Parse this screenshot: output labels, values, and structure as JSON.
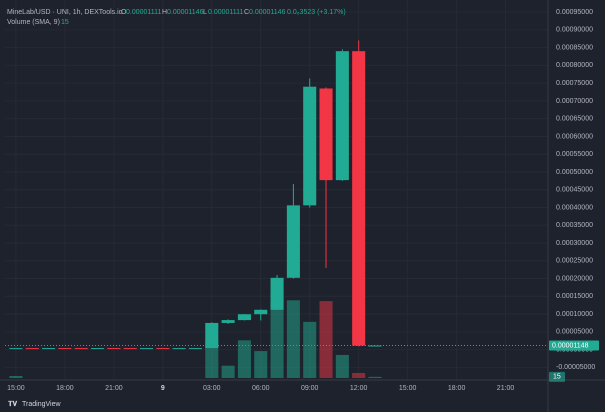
{
  "chart_data": {
    "type": "candlestick",
    "legend": {
      "symbol": "MineLab/USD · UNI, 1h, DEXTools.io",
      "ohlc": [
        [
          "O",
          "0.00001111"
        ],
        [
          "H",
          "0.00001146"
        ],
        [
          "L",
          "0.00001111"
        ],
        [
          "C",
          "0.00001146"
        ]
      ],
      "change": "0.0₆3523 (+3.17%)",
      "volume": "Volume (SMA, 9)"
    },
    "brand": "TradingView",
    "x": [
      0,
      1,
      2,
      3,
      4,
      5,
      6,
      7,
      8,
      9,
      10,
      11,
      12,
      13,
      14,
      15,
      16,
      17,
      18,
      19,
      20,
      21,
      22
    ],
    "open": [
      4e-06,
      4.2e-06,
      4.1e-06,
      4.3e-06,
      4.2e-06,
      4.1e-06,
      4.3e-06,
      4.2e-06,
      4.1e-06,
      4.2e-06,
      4.1e-06,
      4.2e-06,
      4.2e-06,
      7.5e-05,
      8.3e-05,
      9.95e-05,
      0.000112,
      0.000202,
      0.000406,
      0.000735,
      0.000477,
      0.00084,
      1.111e-05
    ],
    "high": [
      4.3e-06,
      4.3e-06,
      4.4e-06,
      4.4e-06,
      4.3e-06,
      4.4e-06,
      4.4e-06,
      4.3e-06,
      4.3e-06,
      4.3e-06,
      4.3e-06,
      4.3e-06,
      7.7e-05,
      8.5e-05,
      0.0001,
      0.000113,
      0.00021,
      0.000466,
      0.000763,
      0.000738,
      0.000845,
      0.00087,
      1.146e-05
    ],
    "low": [
      3.9e-06,
      4e-06,
      4e-06,
      4.1e-06,
      4e-06,
      4e-06,
      4.1e-06,
      4e-06,
      4e-06,
      4e-06,
      4e-06,
      4.1e-06,
      4e-06,
      7.2e-05,
      8.2e-05,
      8.2e-05,
      0.000111,
      0.0002,
      0.0004,
      0.00023,
      0.000475,
      9e-06,
      1.111e-05
    ],
    "close": [
      4.2e-06,
      4.1e-06,
      4.3e-06,
      4.2e-06,
      4.1e-06,
      4.3e-06,
      4.2e-06,
      4.1e-06,
      4.2e-06,
      4.1e-06,
      4.2e-06,
      4.2e-06,
      7.5e-05,
      8.3e-05,
      9.95e-05,
      0.000112,
      0.000202,
      0.000406,
      0.00074,
      0.000477,
      0.00084,
      1.1e-05,
      1.146e-05
    ],
    "volume": [
      26,
      0,
      0,
      0,
      0,
      0,
      0,
      0,
      0,
      0,
      0,
      0,
      480,
      160,
      490,
      350,
      1210,
      1010,
      730,
      1000,
      300,
      65,
      15
    ],
    "volume_ylim": [
      0,
      1300
    ],
    "up_color": "#22ab94",
    "down_color": "#f23645",
    "last_price": {
      "value": 1.148e-05,
      "label": "0.00001148"
    },
    "xlim": [
      -0.67,
      32.6
    ],
    "xticks": [
      {
        "value": 0,
        "label": "15:00"
      },
      {
        "value": 3,
        "label": "18:00"
      },
      {
        "value": 6,
        "label": "21:00"
      },
      {
        "value": 9,
        "label": "9"
      },
      {
        "value": 12,
        "label": "03:00"
      },
      {
        "value": 15,
        "label": "06:00"
      },
      {
        "value": 18,
        "label": "09:00"
      },
      {
        "value": 21,
        "label": "12:00"
      },
      {
        "value": 24,
        "label": "15:00"
      },
      {
        "value": 27,
        "label": "18:00"
      },
      {
        "value": 30,
        "label": "21:00"
      }
    ],
    "ylim": [
      -8e-05,
      0.00097
    ],
    "yticks": [
      {
        "value": -5e-05,
        "label": "-0.00005000"
      },
      {
        "value": 0,
        "label": "0.00000000"
      },
      {
        "value": 5e-05,
        "label": "0.00005000"
      },
      {
        "value": 0.0001,
        "label": "0.00010000"
      },
      {
        "value": 0.00015,
        "label": "0.00015000"
      },
      {
        "value": 0.0002,
        "label": "0.00020000"
      },
      {
        "value": 0.00025,
        "label": "0.00025000"
      },
      {
        "value": 0.0003,
        "label": "0.00030000"
      },
      {
        "value": 0.00035,
        "label": "0.00035000"
      },
      {
        "value": 0.0004,
        "label": "0.00040000"
      },
      {
        "value": 0.00045,
        "label": "0.00045000"
      },
      {
        "value": 0.0005,
        "label": "0.00050000"
      },
      {
        "value": 0.00055,
        "label": "0.00055000"
      },
      {
        "value": 0.0006,
        "label": "0.00060000"
      },
      {
        "value": 0.00065,
        "label": "0.00065000"
      },
      {
        "value": 0.0007,
        "label": "0.00070000"
      },
      {
        "value": 0.00075,
        "label": "0.00075000"
      },
      {
        "value": 0.0008,
        "label": "0.00080000"
      },
      {
        "value": 0.00085,
        "label": "0.00085000"
      },
      {
        "value": 0.0009,
        "label": "0.00090000"
      },
      {
        "value": 0.00095,
        "label": "0.00095000"
      }
    ],
    "grid": true
  }
}
